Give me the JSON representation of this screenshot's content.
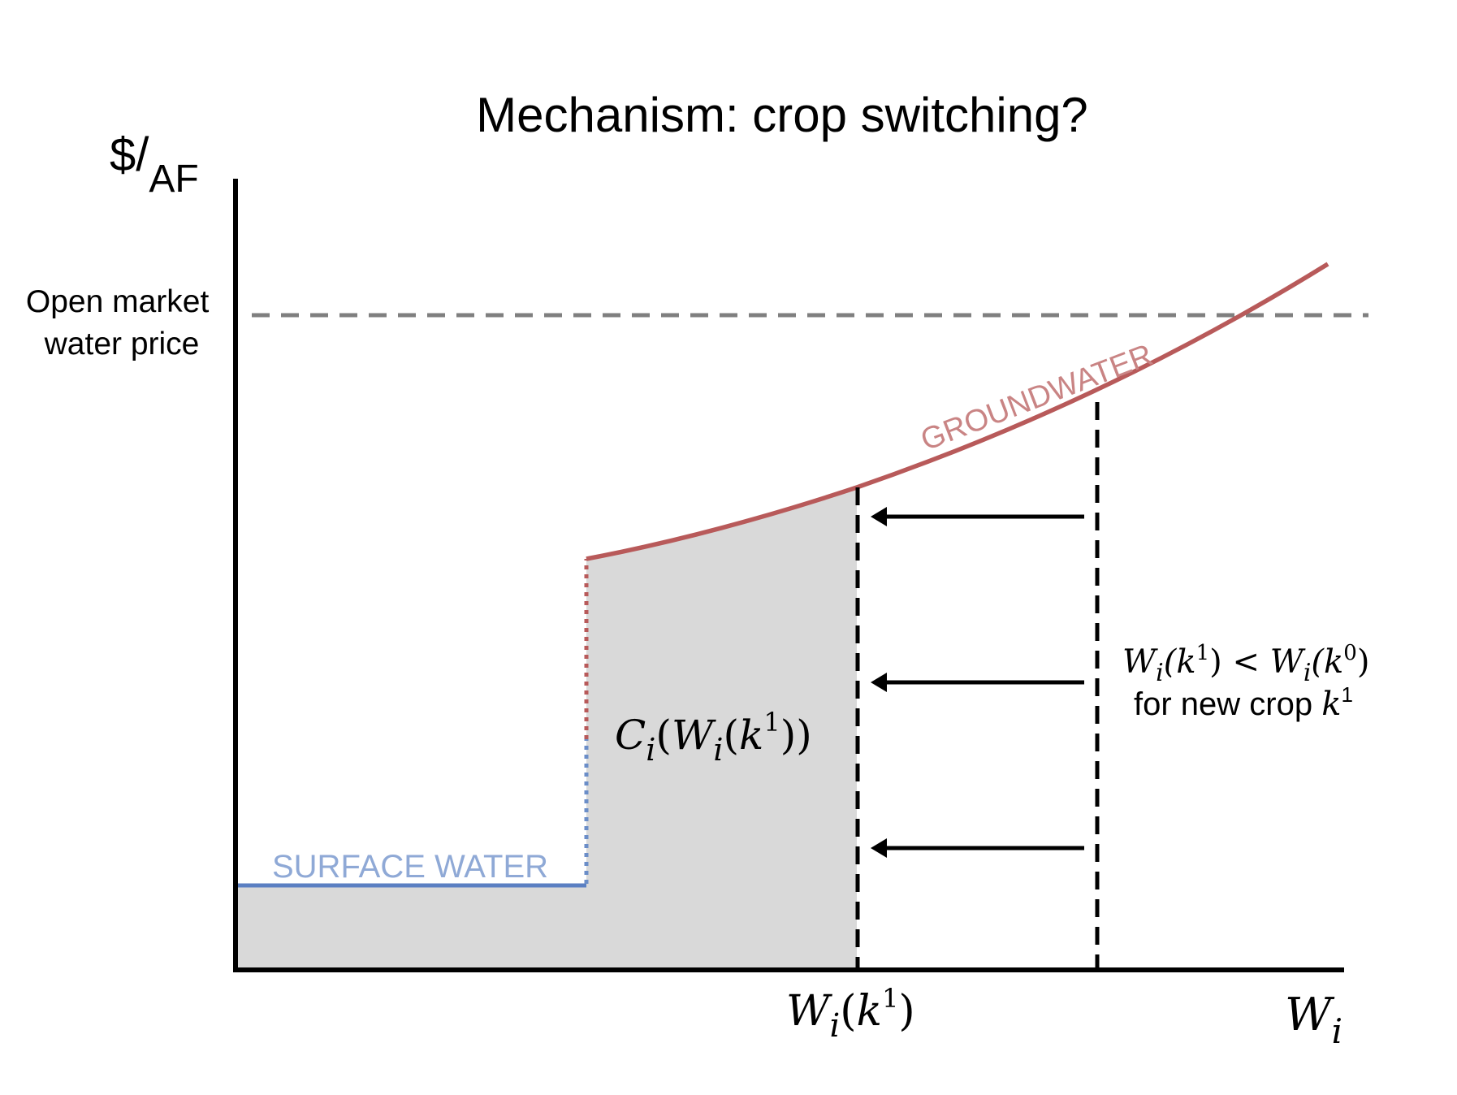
{
  "title": "Mechanism: crop switching?",
  "y_axis": {
    "label_main": "$/",
    "label_sub": "AF"
  },
  "x_axis": {
    "label_main": "W",
    "label_sub": "i"
  },
  "open_market": {
    "line1": "Open market",
    "line2": "water price"
  },
  "surface_water": {
    "label": "SURFACE WATER",
    "color": "#6b8ec8"
  },
  "groundwater": {
    "label": "GROUNDWATER",
    "color": "#b85a5a",
    "label_color": "#c98484"
  },
  "shaded_area": {
    "label_c": "C",
    "label_sub_i": "i",
    "label_open": "(",
    "label_w": "W",
    "label_sub_i2": "i",
    "label_open2": "(",
    "label_k": "k",
    "label_sup": "1",
    "label_close": "))",
    "color": "#d9d9d9"
  },
  "tick_new": {
    "w": "W",
    "sub": "i",
    "open": "(",
    "k": "k",
    "sup": "1",
    "close": ")"
  },
  "annotation": {
    "line1_w1": "W",
    "line1_sub1": "i",
    "line1_k1": "(k",
    "line1_sup1": "1",
    "line1_close1": ")",
    "line1_lt": " < ",
    "line1_w2": "W",
    "line1_sub2": "i",
    "line1_k2": "(k",
    "line1_sup2": "0",
    "line1_close2": ")",
    "line2_text": "for new crop ",
    "line2_k": "k",
    "line2_sup": "1"
  },
  "arrows": {
    "count": 3,
    "color": "#000000"
  }
}
